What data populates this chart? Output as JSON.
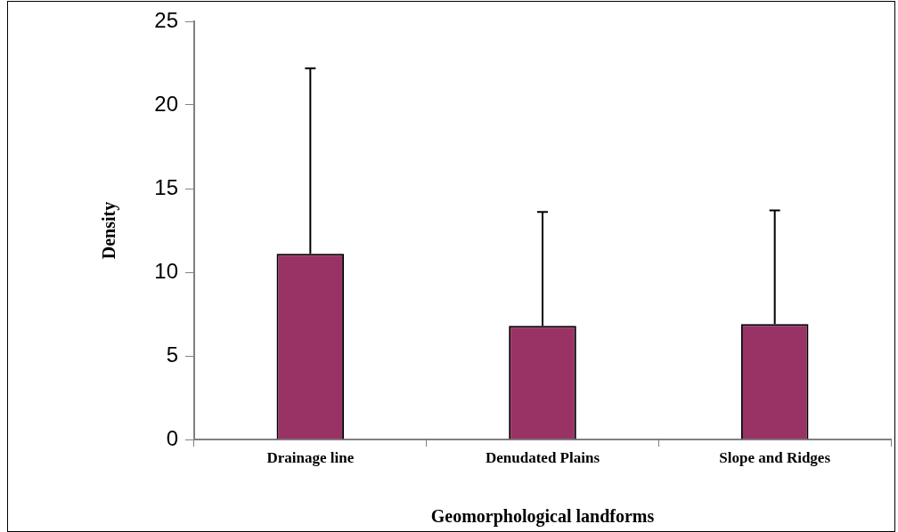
{
  "chart_data": {
    "type": "bar",
    "xlabel": "Geomorphological landforms",
    "ylabel": "Density",
    "categories": [
      "Drainage line",
      "Denudated Plains",
      "Slope and Ridges"
    ],
    "values": [
      11.1,
      6.8,
      6.9
    ],
    "errors": [
      [
        11.1,
        22.2
      ],
      [
        6.8,
        13.6
      ],
      [
        6.9,
        13.7
      ]
    ],
    "color": "#993366",
    "ylim": [
      0,
      25
    ],
    "yticks": [
      0,
      5,
      10,
      15,
      20,
      25
    ],
    "grid": false,
    "legend": false
  }
}
